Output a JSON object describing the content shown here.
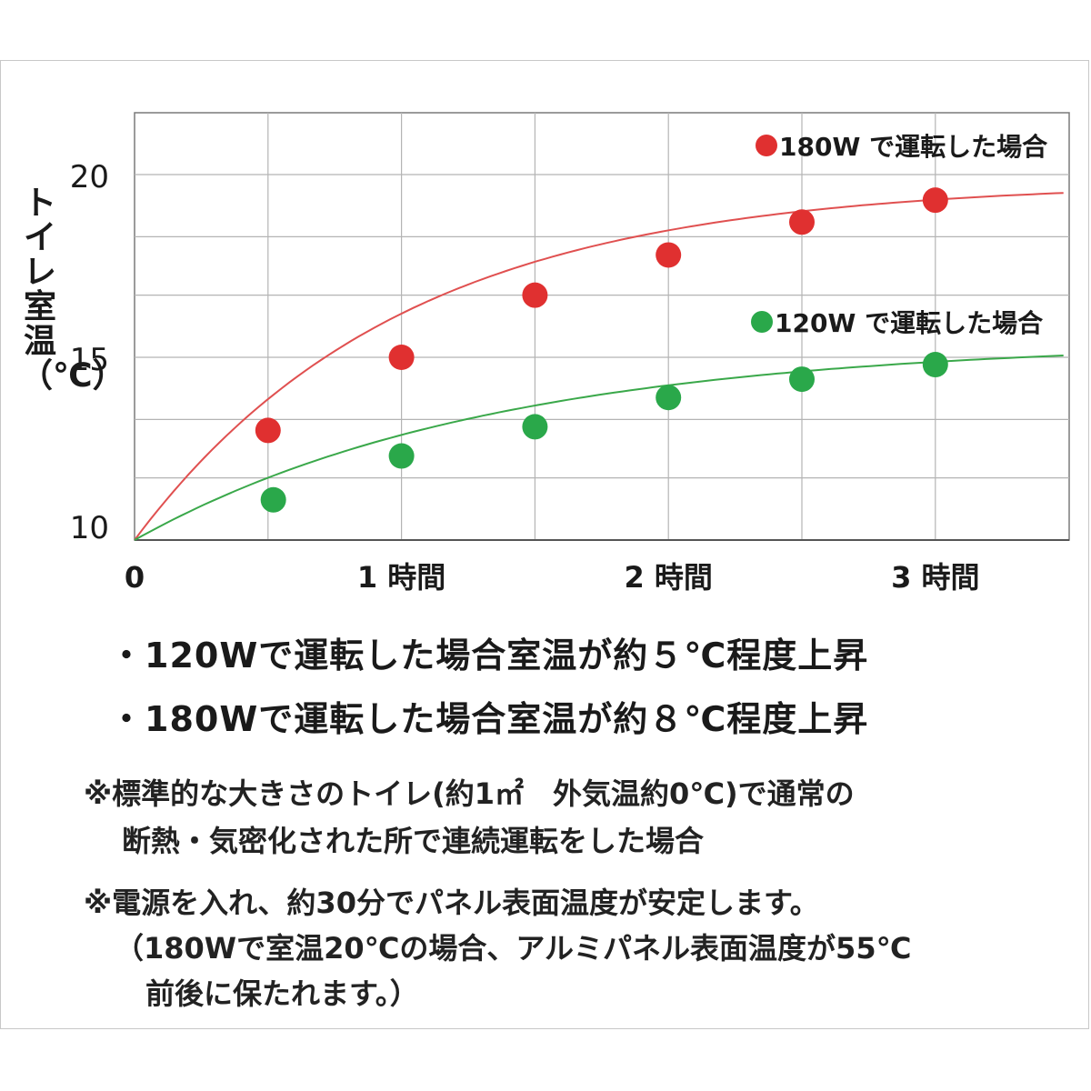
{
  "chart_data": {
    "type": "scatter",
    "x_tick_labels": [
      "0",
      "1 時間",
      "2 時間",
      "3 時間"
    ],
    "x_ticks": [
      0,
      1,
      2,
      3
    ],
    "xlim": [
      0,
      3.5
    ],
    "y_tick_labels": [
      "10",
      "15",
      "20"
    ],
    "y_ticks": [
      10,
      15,
      20
    ],
    "ylim": [
      10,
      21.7
    ],
    "ylabel": "トイレ室温（℃）",
    "grid": true,
    "series": [
      {
        "name": "180W で運転した場合",
        "color": "#e03030",
        "line_color": "#e05050",
        "x": [
          0.5,
          1.0,
          1.5,
          2.0,
          2.5,
          3.0
        ],
        "y": [
          13.0,
          15.0,
          16.7,
          17.8,
          18.7,
          19.3
        ],
        "curve": {
          "a": 10.0,
          "b": 9.8,
          "k": 1.0,
          "x_end": 3.48
        }
      },
      {
        "name": "120W で運転した場合",
        "color": "#2aa84a",
        "line_color": "#3aa84a",
        "x": [
          0.52,
          1.0,
          1.5,
          2.0,
          2.5,
          3.0
        ],
        "y": [
          11.1,
          12.3,
          13.1,
          13.9,
          14.4,
          14.8
        ],
        "curve": {
          "a": 10.0,
          "b": 5.45,
          "k": 0.75,
          "x_end": 3.48
        }
      }
    ],
    "legend_placement": "top-right"
  },
  "notes": {
    "bullet_120": "・120Wで運転した場合室温が約５℃程度上昇",
    "bullet_180": "・180Wで運転した場合室温が約８℃程度上昇",
    "note1_line1": "※標準的な大きさのトイレ(約1㎡　外気温約0℃)で通常の",
    "note1_line2": "断熱・気密化された所で連続運転をした場合",
    "note2_line1": "※電源を入れ、約30分でパネル表面温度が安定します。",
    "note2_line2": "（180Wで室温20℃の場合、アルミパネル表面温度が55℃",
    "note2_line3": "前後に保たれます。）"
  }
}
